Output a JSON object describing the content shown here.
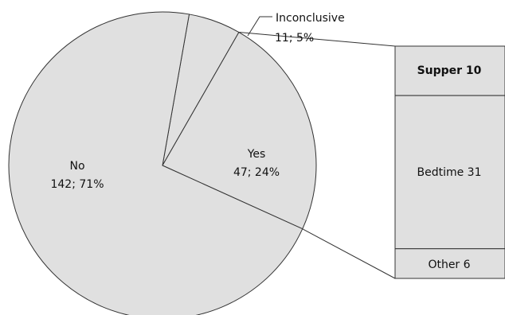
{
  "chart_data": {
    "type": "bar-of-pie",
    "pie_slices": [
      {
        "label": "No",
        "count": 142,
        "percent": 71,
        "label_text": "142; 71%"
      },
      {
        "label": "Inconclusive",
        "count": 11,
        "percent": 5,
        "label_text": "11; 5%"
      },
      {
        "label": "Yes",
        "count": 47,
        "percent": 24,
        "label_text": "47; 24%"
      }
    ],
    "bar_segments": [
      {
        "label": "Supper",
        "value": 10,
        "label_text": "Supper  10"
      },
      {
        "label": "Bedtime",
        "value": 31,
        "label_text": "Bedtime  31"
      },
      {
        "label": "Other",
        "value": 6,
        "label_text": "Other  6"
      }
    ],
    "colors": {
      "fill": "#e0e0e0",
      "stroke": "#333333",
      "text": "#111111",
      "background": "#ffffff"
    }
  }
}
